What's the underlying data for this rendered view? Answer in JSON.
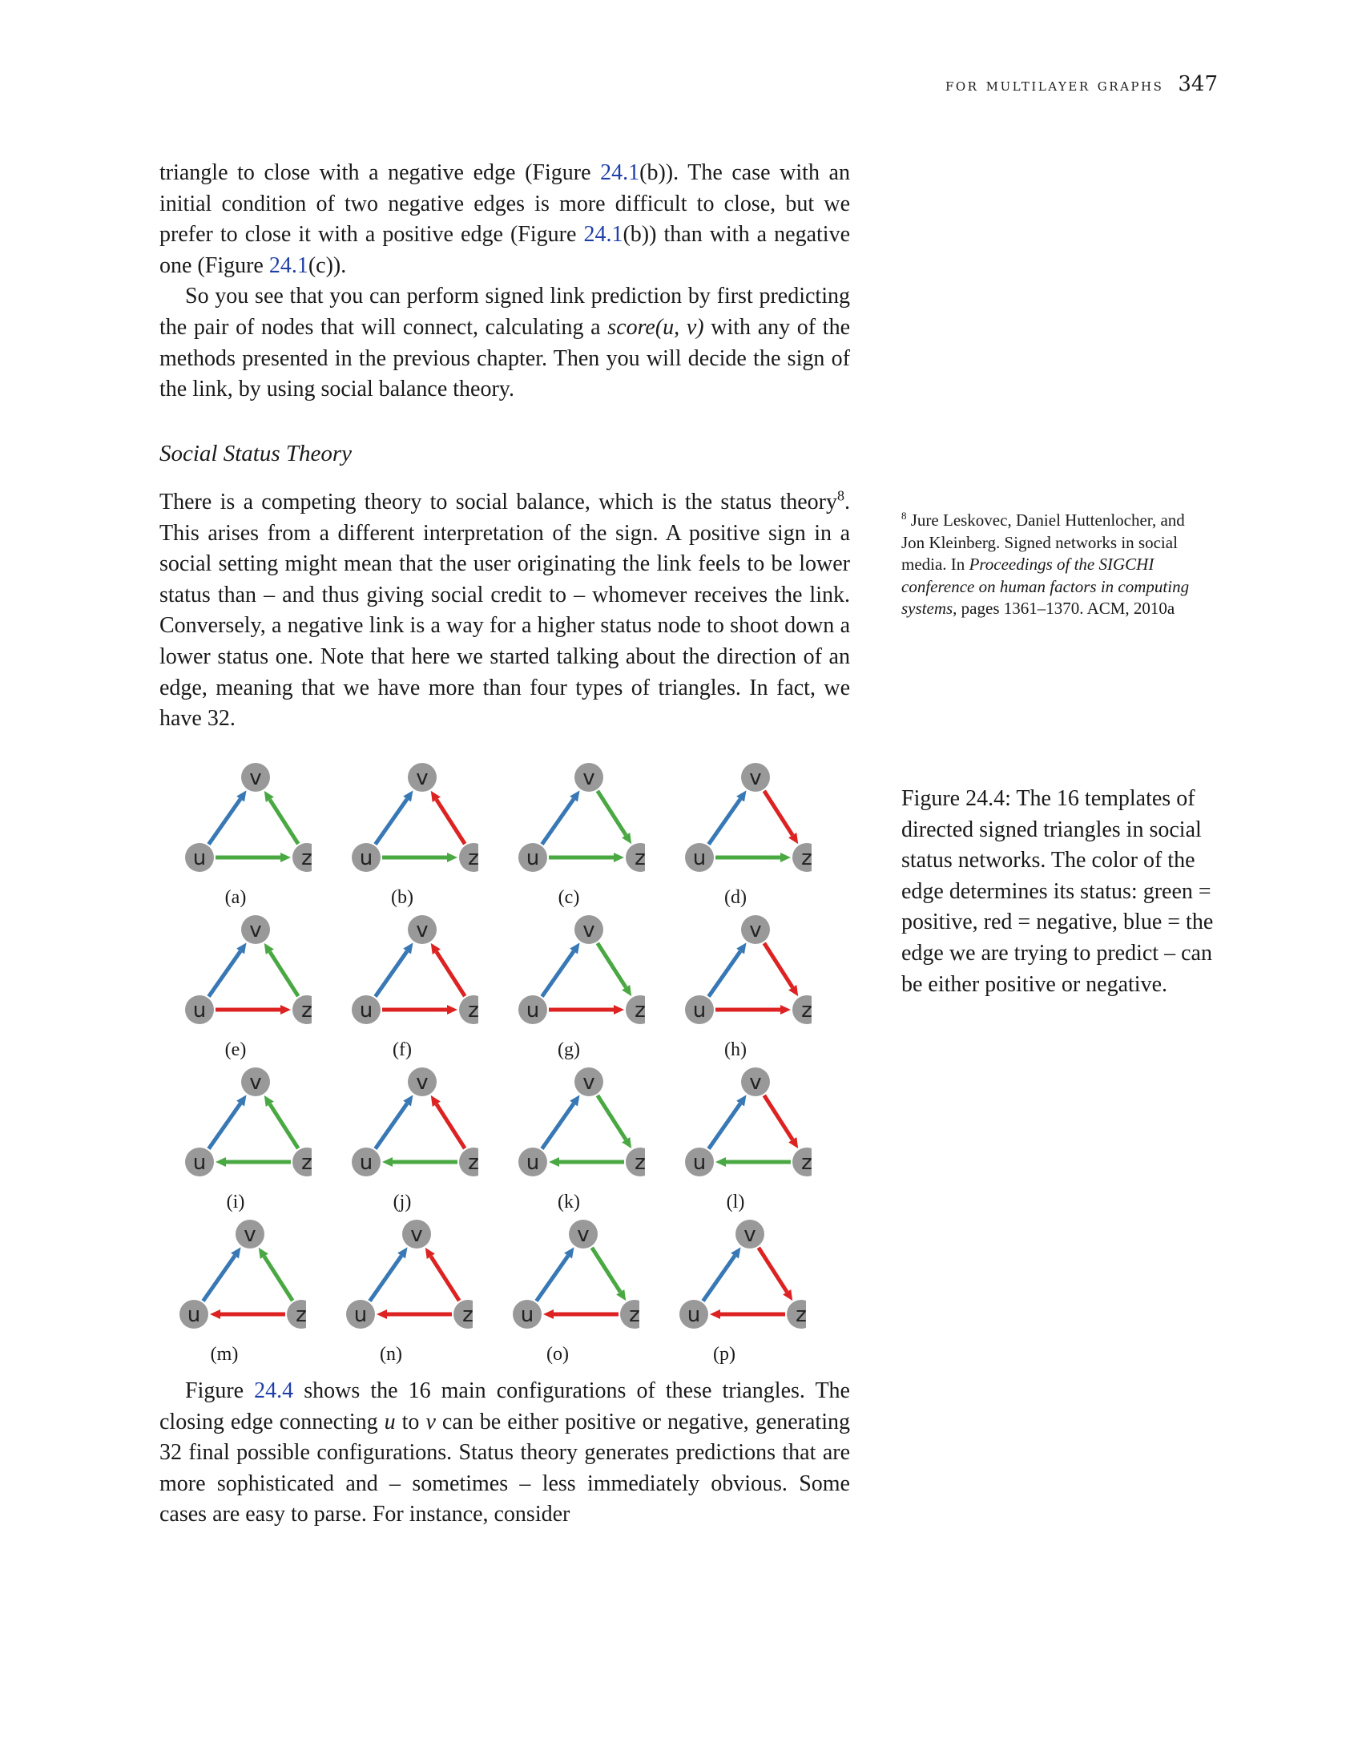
{
  "header": {
    "title": "for multilayer graphs",
    "page_number": "347"
  },
  "para1": {
    "a": "triangle to close with a negative edge (Figure ",
    "r1": "24.1",
    "b": "(b)). The case with an initial condition of two negative edges is more difficult to close, but we prefer to close it with a positive edge (Figure ",
    "r2": "24.1",
    "c": "(b)) than with a negative one (Figure ",
    "r3": "24.1",
    "d": "(c))."
  },
  "para2": {
    "a": "So you see that you can perform signed link prediction by first predicting the pair of nodes that will connect, calculating a ",
    "math": "score(u, v)",
    "b": " with any of the methods presented in the previous chapter. Then you will decide the sign of the link, by using social balance theory."
  },
  "section": {
    "title": "Social Status Theory"
  },
  "para3": {
    "a": "There is a competing theory to social balance, which is the status theory",
    "sup": "8",
    "b": ". This arises from a different interpretation of the sign. A positive sign in a social setting might mean that the user originating the link feels to be lower status than – and thus giving social credit to – whomever receives the link. Conversely, a negative link is a way for a higher status node to shoot down a lower status one. Note that here we started talking about the direction of an edge, meaning that we have more than four types of triangles. In fact, we have 32."
  },
  "sidenote": {
    "num": "8",
    "a": " Jure Leskovec, Daniel Huttenlocher, and Jon Kleinberg. Signed networks in social media. In ",
    "italic": "Proceedings of the SIGCHI conference on human factors in computing systems",
    "b": ", pages 1361–1370. ACM, 2010a"
  },
  "figure": {
    "caption": "Figure 24.4: The 16 templates of directed signed triangles in social status networks. The color of the edge determines its status: green = positive, red = negative, blue = the edge we are trying to predict – can be either positive or negative.",
    "colors": {
      "positive": "#4aa843",
      "negative": "#dd2222",
      "predict": "#3778b5",
      "node": "#999999"
    },
    "node_labels": {
      "u": "u",
      "v": "v",
      "z": "z"
    },
    "panels": [
      {
        "label": "(a)",
        "zv": "positive",
        "uz": "positive"
      },
      {
        "label": "(b)",
        "zv": "negative",
        "uz": "positive"
      },
      {
        "label": "(c)",
        "vz": "positive",
        "uz": "positive"
      },
      {
        "label": "(d)",
        "vz": "negative",
        "uz": "positive"
      },
      {
        "label": "(e)",
        "zv": "positive",
        "uz": "negative"
      },
      {
        "label": "(f)",
        "zv": "negative",
        "uz": "negative"
      },
      {
        "label": "(g)",
        "vz": "positive",
        "uz": "negative"
      },
      {
        "label": "(h)",
        "vz": "negative",
        "uz": "negative"
      },
      {
        "label": "(i)",
        "zv": "positive",
        "zu": "positive"
      },
      {
        "label": "(j)",
        "zv": "negative",
        "zu": "positive"
      },
      {
        "label": "(k)",
        "vz": "positive",
        "zu": "positive"
      },
      {
        "label": "(l)",
        "vz": "negative",
        "zu": "positive"
      },
      {
        "label": "(m)",
        "zv": "positive",
        "zu": "negative"
      },
      {
        "label": "(n)",
        "zv": "negative",
        "zu": "negative"
      },
      {
        "label": "(o)",
        "vz": "positive",
        "zu": "negative"
      },
      {
        "label": "(p)",
        "vz": "negative",
        "zu": "negative"
      }
    ]
  },
  "para4": {
    "a": "Figure ",
    "r1": "24.4",
    "b": " shows the 16 main configurations of these triangles. The closing edge connecting ",
    "m1": "u",
    "c": " to ",
    "m2": "v",
    "d": " can be either positive or negative, generating 32 final possible configurations. Status theory generates predictions that are more sophisticated and – sometimes – less immediately obvious. Some cases are easy to parse. For instance, consider"
  }
}
